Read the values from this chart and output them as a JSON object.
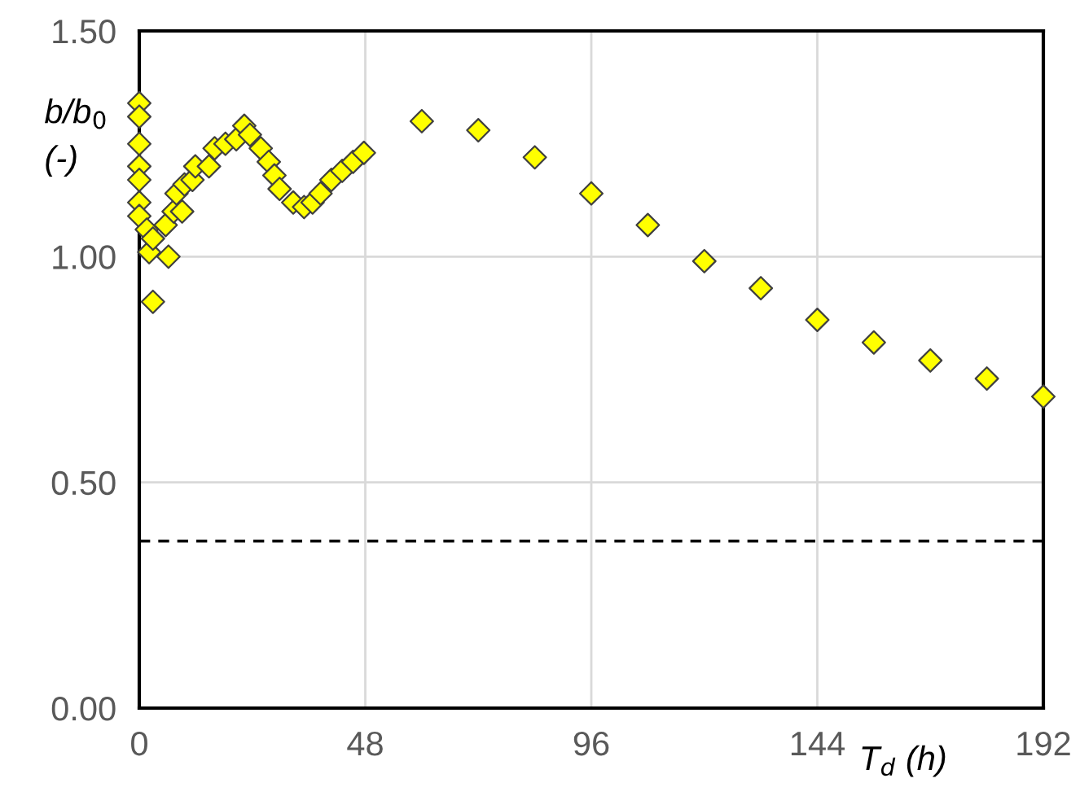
{
  "chart_data": {
    "type": "scatter",
    "xlabel": "T$_{d}$ (h)",
    "ylabel": "b/b$_{0}$ (-)",
    "x": [
      0,
      0,
      0,
      0,
      0,
      0,
      0,
      0.4,
      2.1,
      2.9,
      6.2,
      1.6,
      2.9,
      5.6,
      7.3,
      9.1,
      7.9,
      9.6,
      11.3,
      11.9,
      13.7,
      14.8,
      16,
      18.3,
      20.6,
      22.3,
      23.5,
      25.8,
      27.5,
      28.7,
      29.8,
      31,
      32.7,
      35,
      36.8,
      38.5,
      40.8,
      43.1,
      45.4,
      47.7,
      60,
      72,
      84,
      96,
      108,
      120,
      132,
      144,
      156,
      168,
      180,
      192
    ],
    "series": [
      {
        "color": "#ffff00",
        "values": [
          1.34,
          1.31,
          1.25,
          1.2,
          1.17,
          1.12,
          1.09,
          null,
          1.01,
          0.9,
          1.0,
          1.06,
          1.04,
          1.07,
          1.1,
          1.1,
          1.14,
          1.16,
          1.17,
          1.2,
          null,
          1.2,
          1.24,
          1.25,
          1.26,
          1.29,
          1.27,
          1.24,
          1.21,
          1.18,
          1.15,
          null,
          1.12,
          1.11,
          1.12,
          1.14,
          1.17,
          1.19,
          1.21,
          1.23,
          1.3,
          1.28,
          1.22,
          1.14,
          1.07,
          0.99,
          0.93,
          0.86,
          0.81,
          0.77,
          0.73,
          0.69
        ]
      }
    ],
    "marker": "diamond",
    "xlim": [
      0,
      192
    ],
    "xticks": [
      0,
      48,
      96,
      144,
      192
    ],
    "ylim": [
      0,
      1.5
    ],
    "yticks": [
      {
        "value": 0,
        "label": "0.00"
      },
      {
        "value": 0.5,
        "label": "0.50"
      },
      {
        "value": 1.0,
        "label": "1.00"
      },
      {
        "value": 1.5,
        "label": "1.50"
      }
    ],
    "grid": true,
    "ref_lines": [
      {
        "axis": "y",
        "value": 0.37,
        "label": null,
        "color": "#000000",
        "line_style": "dashed"
      }
    ]
  }
}
